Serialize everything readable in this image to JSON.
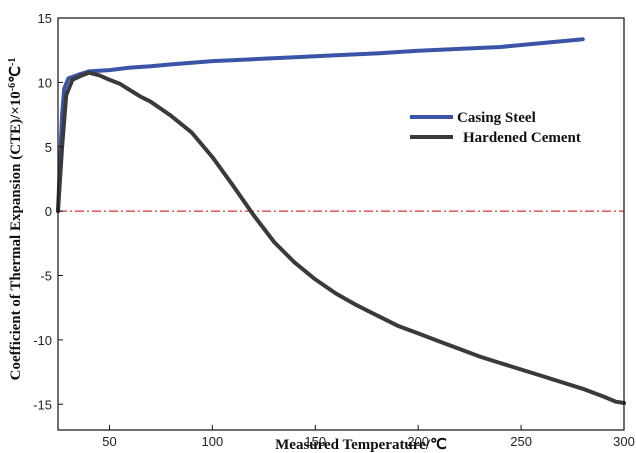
{
  "chart_data": {
    "type": "line",
    "xlabel": "Measured Temperature/℃",
    "ylabel": "Coefficient of Thermal Expansion (CTE)/×10",
    "ylabel_exponent": "-6",
    "ylabel_unit": "℃",
    "ylabel_unit_exponent": "-1",
    "xlim": [
      25,
      300
    ],
    "ylim": [
      -17,
      15
    ],
    "xticks": [
      50,
      100,
      150,
      200,
      250,
      300
    ],
    "yticks": [
      -15,
      -10,
      -5,
      0,
      5,
      10,
      15
    ],
    "grid": false,
    "legend_position": "right",
    "reference_line": {
      "y": 0,
      "style": "dash-dot",
      "color": "#e03030"
    },
    "series": [
      {
        "name": "Casing Steel",
        "color": "#3a55a8",
        "x": [
          25,
          27,
          28,
          30,
          35,
          40,
          50,
          60,
          70,
          80,
          100,
          120,
          140,
          160,
          180,
          200,
          220,
          240,
          260,
          280
        ],
        "y": [
          0,
          7.5,
          9.5,
          10.3,
          10.6,
          10.85,
          10.95,
          11.15,
          11.25,
          11.4,
          11.65,
          11.8,
          11.95,
          12.1,
          12.25,
          12.45,
          12.6,
          12.75,
          13.05,
          13.35
        ]
      },
      {
        "name": "Hardened Cement",
        "color": "#3a3a3a",
        "x": [
          25,
          27,
          29,
          32,
          36,
          40,
          45,
          50,
          55,
          60,
          65,
          70,
          80,
          90,
          100,
          110,
          120,
          130,
          140,
          150,
          160,
          170,
          180,
          190,
          200,
          210,
          220,
          230,
          240,
          250,
          260,
          270,
          280,
          290,
          296,
          300
        ],
        "y": [
          0,
          5.0,
          9.0,
          10.2,
          10.5,
          10.75,
          10.55,
          10.2,
          9.9,
          9.4,
          8.9,
          8.5,
          7.4,
          6.1,
          4.2,
          2.0,
          -0.3,
          -2.4,
          -4.0,
          -5.3,
          -6.4,
          -7.3,
          -8.1,
          -8.9,
          -9.5,
          -10.1,
          -10.7,
          -11.3,
          -11.8,
          -12.3,
          -12.8,
          -13.3,
          -13.8,
          -14.4,
          -14.8,
          -14.9
        ]
      }
    ]
  }
}
